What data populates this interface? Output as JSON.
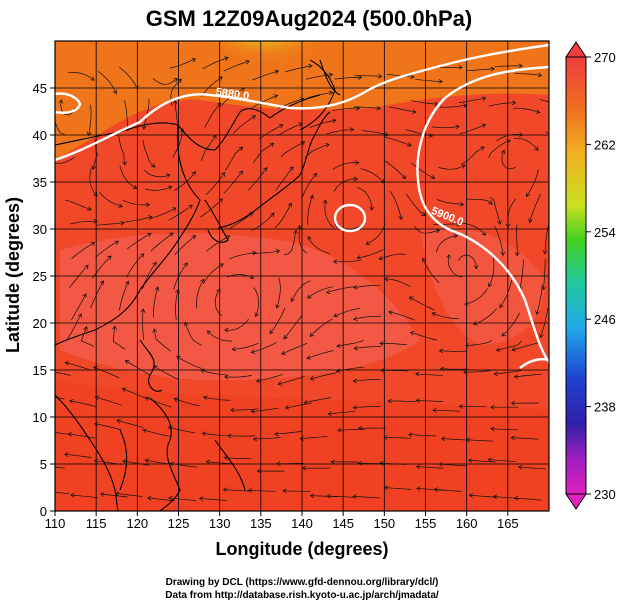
{
  "title": "GSM 12Z09Aug2024 (500.0hPa)",
  "x_axis": {
    "label": "Longitude (degrees)",
    "range": [
      110,
      170
    ],
    "ticks": [
      "110",
      "115",
      "120",
      "125",
      "130",
      "135",
      "140",
      "145",
      "150",
      "155",
      "160",
      "165"
    ]
  },
  "y_axis": {
    "label": "Latitude  (degrees)",
    "range": [
      0,
      50
    ],
    "ticks": [
      "0",
      "5",
      "10",
      "15",
      "20",
      "25",
      "30",
      "35",
      "40",
      "45"
    ]
  },
  "colorbar": {
    "ticks": [
      "270",
      "262",
      "254",
      "246",
      "238",
      "230"
    ]
  },
  "contours": [
    {
      "label": "5880.0",
      "lon": 131.5,
      "lat": 44.0
    },
    {
      "label": "5900.0",
      "lon": 157.5,
      "lat": 31.0
    }
  ],
  "credits": {
    "line1": "Drawing by DCL (https://www.gfd-dennou.org/library/dcl/)",
    "line2": "Data from http://database.rish.kyoto-u.ac.jp/arch/jmadata/"
  },
  "colors": {
    "field_main": "#f04828",
    "field_warm": "#f25c48",
    "field_cool": "#f07a18",
    "field_cold": "#c8e020",
    "contour": "#ffffff",
    "streamline": "#111111",
    "coast": "#000000"
  },
  "chart_data": {
    "type": "heatmap",
    "variable_range": [
      230,
      270
    ],
    "x_range": [
      110,
      170
    ],
    "y_range": [
      0,
      50
    ],
    "contour_levels": [
      5880.0,
      5900.0
    ]
  }
}
